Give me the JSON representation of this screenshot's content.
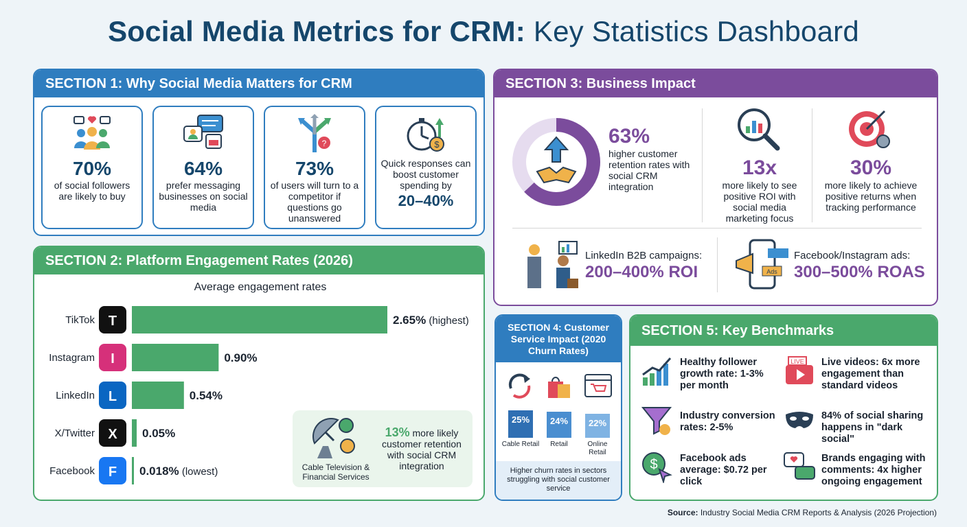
{
  "title": {
    "bold": "Social Media Metrics for CRM:",
    "light": "Key Statistics Dashboard"
  },
  "section1": {
    "heading": "SECTION 1: Why Social Media Matters for CRM",
    "cards": [
      {
        "icon": "social-group-icon",
        "value": "70%",
        "text": "of social followers are likely to buy"
      },
      {
        "icon": "messaging-icon",
        "value": "64%",
        "text": "prefer messaging businesses on social media"
      },
      {
        "icon": "crossroads-icon",
        "value": "73%",
        "text": "of users will turn to a competitor if questions go unanswered"
      },
      {
        "icon": "stopwatch-icon",
        "value": "20–40%",
        "text": "Quick responses can boost customer spending by"
      }
    ]
  },
  "section2": {
    "heading": "SECTION 2: Platform Engagement Rates (2026)",
    "subtitle": "Average engagement rates",
    "callout": {
      "value": "13%",
      "text": "more likely customer retention with social CRM integration",
      "caption": "Cable Television & Financial Services"
    }
  },
  "chart_data": {
    "type": "bar",
    "orientation": "horizontal",
    "title": "Average engagement rates",
    "categories": [
      "TikTok",
      "Instagram",
      "LinkedIn",
      "X/Twitter",
      "Facebook"
    ],
    "values": [
      2.65,
      0.9,
      0.54,
      0.05,
      0.018
    ],
    "value_labels": [
      "2.65%",
      "0.90%",
      "0.54%",
      "0.05%",
      "0.018%"
    ],
    "annotations": [
      "(highest)",
      "",
      "",
      "",
      "(lowest)"
    ],
    "platform_colors": [
      "#111111",
      "#d6307a",
      "#0a66c2",
      "#111111",
      "#1877f2"
    ],
    "bar_color": "#4aa86c",
    "xlim": [
      0,
      2.65
    ],
    "grid": false
  },
  "section3": {
    "heading": "SECTION 3: Business Impact",
    "donut": {
      "value": "63%",
      "fraction": 0.63,
      "text": "higher customer retention rates with social CRM integration"
    },
    "stats": [
      {
        "icon": "magnifier-chart-icon",
        "value": "13x",
        "text": "more likely to see positive ROI with social media marketing focus"
      },
      {
        "icon": "target-icon",
        "value": "30%",
        "text": "more likely to achieve positive returns when tracking performance"
      }
    ],
    "roi": [
      {
        "icon": "business-handshake-icon",
        "label": "LinkedIn B2B campaigns:",
        "value": "200–400% ROI"
      },
      {
        "icon": "phone-megaphone-icon",
        "label": "Facebook/Instagram ads:",
        "value": "300–500% ROAS"
      }
    ]
  },
  "section4": {
    "heading": "SECTION 4: Customer Service Impact (2020 Churn Rates)",
    "bars": [
      {
        "label": "Cable Retail",
        "value": "25%",
        "pct": 25,
        "color": "#2f6fb3"
      },
      {
        "label": "Retail",
        "value": "24%",
        "pct": 24,
        "color": "#4a8ed0"
      },
      {
        "label": "Online Retail",
        "value": "22%",
        "pct": 22,
        "color": "#7fb3e3"
      }
    ],
    "footer": "Higher churn rates in sectors struggling with social customer service"
  },
  "section5": {
    "heading": "SECTION 5: Key Benchmarks",
    "items": [
      {
        "icon": "growth-chart-icon",
        "text": "Healthy follower growth rate: 1-3% per month"
      },
      {
        "icon": "live-video-icon",
        "text": "Live videos: 6x more engagement than standard videos"
      },
      {
        "icon": "funnel-icon",
        "text": "Industry conversion rates: 2-5%"
      },
      {
        "icon": "mask-icon",
        "text": "84% of social sharing happens in \"dark social\""
      },
      {
        "icon": "dollar-click-icon",
        "text": "Facebook ads average: $0.72 per click"
      },
      {
        "icon": "chat-bubbles-icon",
        "text": "Brands engaging with comments: 4x higher ongoing engagement"
      }
    ]
  },
  "source": {
    "label": "Source:",
    "text": "Industry Social Media CRM Reports & Analysis (2026 Projection)"
  }
}
